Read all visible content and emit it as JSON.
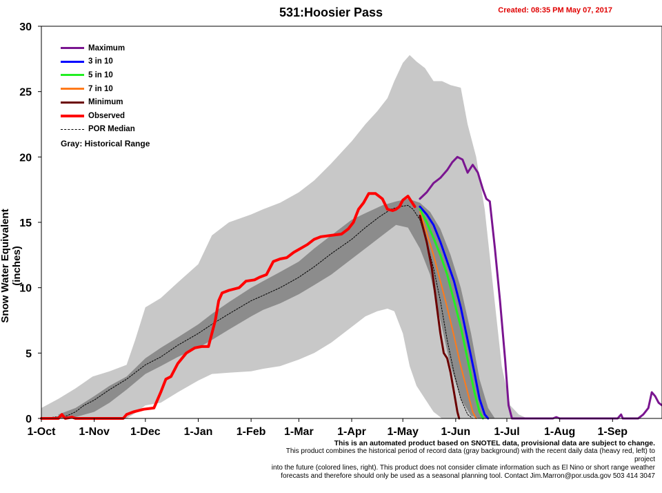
{
  "header": {
    "title": "531:Hoosier Pass",
    "created": "Created: 08:35 PM May 07, 2017"
  },
  "footer": {
    "line1": "This is an automated product based on SNOTEL data, provisional data are subject to change.",
    "line2": "This product combines the historical period of record data (gray background) with the recent daily data (heavy red, left) to project",
    "line3": "into the future (colored lines, right). This product does not consider climate information such as El Nino or short range weather",
    "line4": "forecasts and therefore should only be used as a seasonal planning tool. Contact Jim.Marron@por.usda.gov 503 414 3047"
  },
  "legend": {
    "historical_note": "Gray: Historical Range"
  },
  "colors": {
    "maximum": "#7a1590",
    "p3in10": "#0000ff",
    "p5in10": "#22ee22",
    "p7in10": "#ff7a1a",
    "minimum": "#6b0000",
    "observed": "#ff0000",
    "median": "#000000",
    "range_outer": "#c8c8c8",
    "range_inner": "#8c8c8c"
  },
  "chart_data": {
    "type": "line",
    "title": "531:Hoosier Pass",
    "xlabel": "",
    "ylabel": "Snow Water Equivalent (inches)",
    "ylim": [
      0,
      30
    ],
    "yticks": [
      0,
      5,
      10,
      15,
      20,
      25,
      30
    ],
    "x_ticks": [
      "1-Oct",
      "1-Nov",
      "1-Dec",
      "1-Jan",
      "1-Feb",
      "1-Mar",
      "1-Apr",
      "1-May",
      "1-Jun",
      "1-Jul",
      "1-Aug",
      "1-Sep"
    ],
    "x_tick_days": [
      0,
      31,
      61,
      92,
      123,
      151,
      182,
      212,
      243,
      273,
      304,
      335
    ],
    "x_range_days": [
      0,
      364
    ],
    "x_unit": "days after 1-Oct",
    "grid": false,
    "legend_position": "top-left",
    "historical_range_outer": [
      [
        0,
        0.8,
        0
      ],
      [
        10,
        1.5,
        0
      ],
      [
        20,
        2.3,
        0
      ],
      [
        30,
        3.2,
        0
      ],
      [
        40,
        3.6,
        0
      ],
      [
        50,
        4.1,
        0
      ],
      [
        55,
        6.0,
        0.4
      ],
      [
        61,
        8.5,
        1.0
      ],
      [
        70,
        9.2,
        1.2
      ],
      [
        80,
        10.4,
        2.0
      ],
      [
        92,
        11.8,
        2.9
      ],
      [
        100,
        14.0,
        3.4
      ],
      [
        110,
        15.0,
        3.5
      ],
      [
        123,
        15.6,
        3.6
      ],
      [
        130,
        16.0,
        3.8
      ],
      [
        140,
        16.5,
        4.0
      ],
      [
        151,
        17.3,
        4.5
      ],
      [
        160,
        18.2,
        5.0
      ],
      [
        170,
        19.5,
        5.8
      ],
      [
        182,
        21.2,
        7.0
      ],
      [
        190,
        22.5,
        7.8
      ],
      [
        197,
        23.5,
        8.2
      ],
      [
        203,
        24.5,
        8.4
      ],
      [
        207,
        25.8,
        8.2
      ],
      [
        212,
        27.2,
        6.5
      ],
      [
        216,
        27.8,
        4.0
      ],
      [
        220,
        27.3,
        2.5
      ],
      [
        225,
        26.8,
        1.5
      ],
      [
        230,
        25.8,
        0.5
      ],
      [
        235,
        25.8,
        0
      ],
      [
        240,
        25.5,
        0
      ],
      [
        246,
        25.3,
        0
      ],
      [
        250,
        22.5,
        0
      ],
      [
        255,
        20.0,
        0
      ],
      [
        260,
        16.0,
        0
      ],
      [
        265,
        10.0,
        0
      ],
      [
        270,
        4.0,
        0
      ],
      [
        275,
        1.0,
        0
      ],
      [
        280,
        0.3,
        0
      ],
      [
        285,
        0,
        0
      ],
      [
        364,
        0,
        0
      ]
    ],
    "historical_range_inner": [
      [
        10,
        0.3,
        0
      ],
      [
        20,
        0.8,
        0.1
      ],
      [
        31,
        1.7,
        0.5
      ],
      [
        40,
        2.5,
        1.2
      ],
      [
        50,
        3.2,
        2.2
      ],
      [
        61,
        4.6,
        3.4
      ],
      [
        70,
        5.4,
        4.0
      ],
      [
        80,
        6.2,
        4.7
      ],
      [
        92,
        7.2,
        5.4
      ],
      [
        100,
        8.0,
        6.0
      ],
      [
        110,
        8.9,
        6.8
      ],
      [
        123,
        10.0,
        7.8
      ],
      [
        130,
        10.5,
        8.3
      ],
      [
        140,
        11.2,
        8.8
      ],
      [
        151,
        12.0,
        9.5
      ],
      [
        160,
        13.0,
        10.2
      ],
      [
        170,
        14.0,
        11.0
      ],
      [
        182,
        15.2,
        12.2
      ],
      [
        190,
        15.7,
        13.0
      ],
      [
        200,
        16.3,
        14.0
      ],
      [
        208,
        16.6,
        14.8
      ],
      [
        215,
        16.8,
        14.6
      ],
      [
        222,
        16.5,
        13.0
      ],
      [
        228,
        15.8,
        11.0
      ],
      [
        234,
        14.5,
        7.5
      ],
      [
        240,
        12.5,
        4.0
      ],
      [
        246,
        10.0,
        1.5
      ],
      [
        252,
        6.5,
        0.2
      ],
      [
        257,
        3.0,
        0
      ],
      [
        262,
        0.8,
        0
      ],
      [
        266,
        0,
        0
      ]
    ],
    "series": [
      {
        "name": "Maximum",
        "color_key": "maximum",
        "points": [
          [
            222,
            16.8
          ],
          [
            226,
            17.3
          ],
          [
            230,
            18.0
          ],
          [
            234,
            18.4
          ],
          [
            238,
            19.0
          ],
          [
            241,
            19.6
          ],
          [
            244,
            20.0
          ],
          [
            247,
            19.8
          ],
          [
            250,
            18.8
          ],
          [
            253,
            19.4
          ],
          [
            256,
            18.8
          ],
          [
            259,
            17.5
          ],
          [
            261,
            16.8
          ],
          [
            263,
            16.6
          ],
          [
            266,
            13.0
          ],
          [
            269,
            9.0
          ],
          [
            272,
            4.5
          ],
          [
            274,
            1.0
          ],
          [
            276,
            0
          ],
          [
            300,
            0
          ],
          [
            302,
            0.1
          ],
          [
            304,
            0
          ],
          [
            338,
            0
          ],
          [
            340,
            0.3
          ],
          [
            341,
            0
          ],
          [
            350,
            0
          ],
          [
            353,
            0.3
          ],
          [
            356,
            0.8
          ],
          [
            358,
            2.0
          ],
          [
            360,
            1.7
          ],
          [
            362,
            1.2
          ],
          [
            364,
            1.0
          ]
        ]
      },
      {
        "name": "3 in 10",
        "color_key": "p3in10",
        "points": [
          [
            222,
            16.2
          ],
          [
            226,
            15.6
          ],
          [
            230,
            14.8
          ],
          [
            234,
            13.5
          ],
          [
            238,
            12.0
          ],
          [
            242,
            10.5
          ],
          [
            246,
            8.5
          ],
          [
            250,
            6.0
          ],
          [
            254,
            3.5
          ],
          [
            257,
            1.5
          ],
          [
            260,
            0.3
          ],
          [
            262,
            0
          ]
        ]
      },
      {
        "name": "5 in 10",
        "color_key": "p5in10",
        "points": [
          [
            222,
            16.0
          ],
          [
            226,
            15.0
          ],
          [
            230,
            13.8
          ],
          [
            234,
            12.5
          ],
          [
            238,
            11.0
          ],
          [
            242,
            9.0
          ],
          [
            246,
            7.0
          ],
          [
            250,
            4.5
          ],
          [
            254,
            2.0
          ],
          [
            257,
            0.5
          ],
          [
            259,
            0
          ]
        ]
      },
      {
        "name": "7 in 10",
        "color_key": "p7in10",
        "points": [
          [
            222,
            15.8
          ],
          [
            226,
            14.2
          ],
          [
            230,
            12.5
          ],
          [
            234,
            10.5
          ],
          [
            238,
            8.5
          ],
          [
            242,
            6.3
          ],
          [
            246,
            4.0
          ],
          [
            250,
            2.0
          ],
          [
            253,
            0.5
          ],
          [
            255,
            0
          ]
        ]
      },
      {
        "name": "Minimum",
        "color_key": "minimum",
        "points": [
          [
            222,
            15.5
          ],
          [
            226,
            13.5
          ],
          [
            229,
            11.5
          ],
          [
            232,
            8.5
          ],
          [
            234,
            6.5
          ],
          [
            236,
            5.0
          ],
          [
            238,
            4.6
          ],
          [
            240,
            3.5
          ],
          [
            242,
            2.0
          ],
          [
            244,
            0.5
          ],
          [
            245,
            0
          ]
        ]
      },
      {
        "name": "Observed",
        "color_key": "observed",
        "points": [
          [
            0,
            0
          ],
          [
            10,
            0
          ],
          [
            12,
            0.3
          ],
          [
            14,
            0
          ],
          [
            18,
            0.1
          ],
          [
            20,
            0
          ],
          [
            48,
            0
          ],
          [
            50,
            0.3
          ],
          [
            54,
            0.5
          ],
          [
            60,
            0.7
          ],
          [
            66,
            0.8
          ],
          [
            70,
            2.0
          ],
          [
            73,
            3.0
          ],
          [
            76,
            3.2
          ],
          [
            80,
            4.2
          ],
          [
            85,
            5.0
          ],
          [
            90,
            5.4
          ],
          [
            94,
            5.5
          ],
          [
            98,
            5.5
          ],
          [
            102,
            7.5
          ],
          [
            104,
            9.0
          ],
          [
            106,
            9.6
          ],
          [
            110,
            9.8
          ],
          [
            116,
            10.0
          ],
          [
            120,
            10.5
          ],
          [
            125,
            10.6
          ],
          [
            128,
            10.8
          ],
          [
            132,
            11.0
          ],
          [
            136,
            12.0
          ],
          [
            140,
            12.2
          ],
          [
            144,
            12.3
          ],
          [
            148,
            12.7
          ],
          [
            152,
            13.0
          ],
          [
            156,
            13.3
          ],
          [
            160,
            13.7
          ],
          [
            164,
            13.9
          ],
          [
            170,
            14.0
          ],
          [
            176,
            14.1
          ],
          [
            180,
            14.5
          ],
          [
            183,
            15.0
          ],
          [
            186,
            16.0
          ],
          [
            189,
            16.5
          ],
          [
            192,
            17.2
          ],
          [
            196,
            17.2
          ],
          [
            200,
            16.8
          ],
          [
            203,
            16.0
          ],
          [
            206,
            15.9
          ],
          [
            208,
            16.0
          ],
          [
            210,
            16.2
          ],
          [
            212,
            16.7
          ],
          [
            215,
            17.0
          ],
          [
            217,
            16.6
          ],
          [
            219,
            16.2
          ]
        ]
      },
      {
        "name": "POR Median",
        "color_key": "median",
        "dashed": true,
        "points": [
          [
            0,
            0
          ],
          [
            15,
            0.2
          ],
          [
            20,
            0.5
          ],
          [
            25,
            1.0
          ],
          [
            31,
            1.4
          ],
          [
            40,
            2.2
          ],
          [
            50,
            3.0
          ],
          [
            61,
            4.1
          ],
          [
            70,
            4.7
          ],
          [
            80,
            5.6
          ],
          [
            92,
            6.5
          ],
          [
            100,
            7.2
          ],
          [
            110,
            8.0
          ],
          [
            123,
            9.0
          ],
          [
            130,
            9.4
          ],
          [
            140,
            10.0
          ],
          [
            151,
            10.8
          ],
          [
            160,
            11.6
          ],
          [
            170,
            12.6
          ],
          [
            182,
            13.7
          ],
          [
            190,
            14.6
          ],
          [
            198,
            15.4
          ],
          [
            205,
            16.0
          ],
          [
            210,
            16.2
          ],
          [
            215,
            16.3
          ],
          [
            218,
            16.0
          ],
          [
            222,
            15.2
          ],
          [
            226,
            13.5
          ],
          [
            230,
            11.5
          ],
          [
            234,
            9.0
          ],
          [
            238,
            6.0
          ],
          [
            242,
            3.5
          ],
          [
            246,
            1.5
          ],
          [
            250,
            0.3
          ],
          [
            253,
            0
          ]
        ]
      }
    ]
  }
}
